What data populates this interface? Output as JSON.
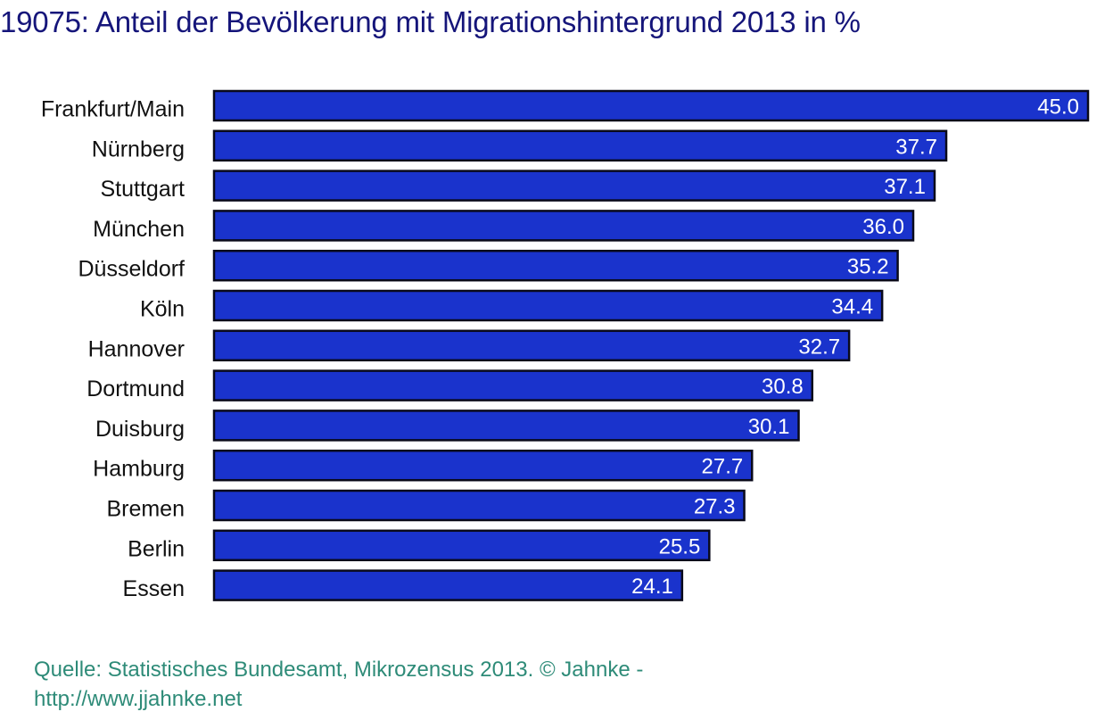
{
  "chart_data": {
    "type": "bar",
    "orientation": "horizontal",
    "title": "19075: Anteil der Bevölkerung mit Migrationshintergrund 2013 in %",
    "xlabel": "",
    "ylabel": "",
    "xlim": [
      0,
      45
    ],
    "grid": false,
    "categories": [
      "Frankfurt/Main",
      "Nürnberg",
      "Stuttgart",
      "München",
      "Düsseldorf",
      "Köln",
      "Hannover",
      "Dortmund",
      "Duisburg",
      "Hamburg",
      "Bremen",
      "Berlin",
      "Essen"
    ],
    "values": [
      45.0,
      37.7,
      37.1,
      36.0,
      35.2,
      34.4,
      32.7,
      30.8,
      30.1,
      27.7,
      27.3,
      25.5,
      24.1
    ],
    "value_labels": [
      "45.0",
      "37.7",
      "37.1",
      "36.0",
      "35.2",
      "34.4",
      "32.7",
      "30.8",
      "30.1",
      "27.7",
      "27.3",
      "25.5",
      "24.1"
    ],
    "bar_color": "#1a33cc"
  },
  "source": {
    "line1": "Quelle: Statistisches Bundesamt, Mikrozensus 2013. © Jahnke -",
    "line2": "http://www.jjahnke.net"
  }
}
